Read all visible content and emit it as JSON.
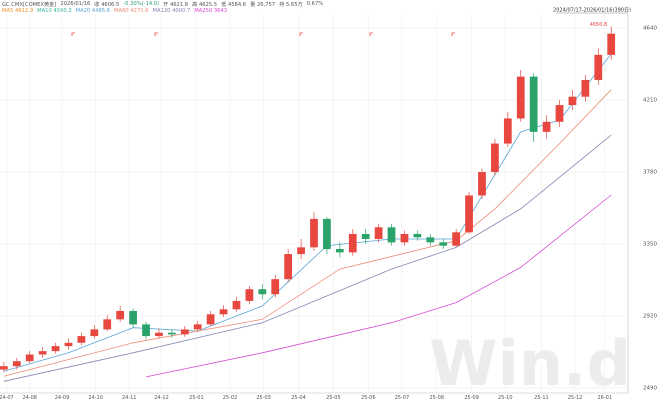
{
  "chart_data": {
    "type": "candlestick",
    "info": [
      "GC.CMX[COMEX黄金]",
      "2026/01/16",
      "收 4606.5",
      "-0.30%(-14.0)",
      "开 4621.8",
      "高 4625.5",
      "低 4584.6",
      "量 26,757",
      "持 5.65万",
      "0.67%"
    ],
    "range": "2024/07/17-2026/01/16(390日)",
    "watermark": "Win.d",
    "up_color": "#e8473f",
    "down_color": "#2aa36b",
    "candles": {
      "open": [
        2600,
        2620,
        2650,
        2690,
        2710,
        2740,
        2760,
        2800,
        2840,
        2900,
        2950,
        2870,
        2800,
        2820,
        2810,
        2840,
        2870,
        2930,
        2960,
        3010,
        3080,
        3050,
        3140,
        3290,
        3330,
        3500,
        3320,
        3300,
        3410,
        3380,
        3450,
        3360,
        3410,
        3390,
        3360,
        3340,
        3420,
        3640,
        3780,
        3950,
        4100,
        4350,
        4020,
        4080,
        4180,
        4230,
        4330,
        4480
      ],
      "high": [
        2645,
        2670,
        2710,
        2735,
        2760,
        2785,
        2820,
        2865,
        2925,
        2980,
        2965,
        2885,
        2845,
        2840,
        2860,
        2890,
        2950,
        2985,
        3035,
        3100,
        3110,
        3165,
        3320,
        3380,
        3540,
        3510,
        3360,
        3440,
        3440,
        3470,
        3470,
        3430,
        3430,
        3410,
        3380,
        3440,
        3660,
        3800,
        3980,
        4140,
        4390,
        4370,
        4120,
        4210,
        4270,
        4360,
        4520,
        4650.8
      ],
      "low": [
        2585,
        2600,
        2635,
        2670,
        2695,
        2720,
        2745,
        2785,
        2830,
        2885,
        2850,
        2780,
        2785,
        2790,
        2795,
        2825,
        2860,
        2915,
        2945,
        2990,
        3020,
        3030,
        3120,
        3260,
        3310,
        3290,
        3270,
        3280,
        3350,
        3360,
        3340,
        3340,
        3370,
        3340,
        3320,
        3330,
        3410,
        3620,
        3760,
        3930,
        4080,
        3960,
        3980,
        4050,
        4150,
        4200,
        4300,
        4450
      ],
      "close": [
        2620,
        2650,
        2690,
        2710,
        2740,
        2760,
        2800,
        2840,
        2900,
        2950,
        2870,
        2800,
        2820,
        2810,
        2840,
        2870,
        2930,
        2960,
        3010,
        3080,
        3050,
        3140,
        3290,
        3330,
        3500,
        3320,
        3300,
        3410,
        3380,
        3450,
        3360,
        3410,
        3390,
        3360,
        3340,
        3420,
        3640,
        3780,
        3950,
        4100,
        4350,
        4020,
        4080,
        4180,
        4230,
        4330,
        4480,
        4606.5
      ]
    },
    "ma": [
      {
        "name": "MA5",
        "last": 4612.9,
        "color": "#f08c2a"
      },
      {
        "name": "MA10",
        "last": 4590.3,
        "color": "#3bb39b"
      },
      {
        "name": "MA20",
        "last": 4485.6,
        "color": "#5aa7d6",
        "x": [
          0,
          5,
          10,
          15,
          20,
          25,
          30,
          35,
          40,
          43,
          47
        ],
        "values": [
          2590,
          2700,
          2850,
          2830,
          2980,
          3340,
          3380,
          3380,
          4020,
          4090,
          4485.6
        ]
      },
      {
        "name": "MA60",
        "last": 4271.6,
        "color": "#ec8a73",
        "x": [
          0,
          10,
          20,
          26,
          35,
          38,
          43,
          47
        ],
        "values": [
          2560,
          2760,
          2900,
          3200,
          3370,
          3560,
          3950,
          4271.6
        ]
      },
      {
        "name": "MA120",
        "last": 4000.7,
        "color": "#8486b3",
        "x": [
          0,
          10,
          20,
          30,
          35,
          40,
          47
        ],
        "values": [
          2530,
          2700,
          2880,
          3200,
          3330,
          3560,
          4000.7
        ]
      },
      {
        "name": "MA250",
        "last": 3643.0,
        "color": "#d64bd6",
        "x": [
          11,
          20,
          30,
          35,
          40,
          47
        ],
        "values": [
          2556,
          2700,
          2880,
          3000,
          3210,
          3643.0
        ]
      }
    ],
    "xlim": [
      -0.3,
      48.3
    ],
    "xticks": [
      {
        "value": 0.2,
        "label": "24-07"
      },
      {
        "value": 2,
        "label": "24-08"
      },
      {
        "value": 4.5,
        "label": "24-09"
      },
      {
        "value": 7.1,
        "label": "24-10"
      },
      {
        "value": 9.7,
        "label": "24-11"
      },
      {
        "value": 12.2,
        "label": "24-12"
      },
      {
        "value": 14.9,
        "label": "25-01"
      },
      {
        "value": 17.5,
        "label": "25-02"
      },
      {
        "value": 20.1,
        "label": "25-03"
      },
      {
        "value": 22.8,
        "label": "25-04"
      },
      {
        "value": 25.5,
        "label": "25-05"
      },
      {
        "value": 28.2,
        "label": "25-06"
      },
      {
        "value": 30.8,
        "label": "25-07"
      },
      {
        "value": 33.5,
        "label": "25-08"
      },
      {
        "value": 36.2,
        "label": "25-09"
      },
      {
        "value": 38.8,
        "label": "25-10"
      },
      {
        "value": 41.6,
        "label": "25-11"
      },
      {
        "value": 44.2,
        "label": "25-12"
      },
      {
        "value": 46.5,
        "label": "26-01"
      }
    ],
    "ylim": [
      2460,
      4724
    ],
    "yticks": [
      2490,
      2920,
      3350,
      3780,
      4210,
      4640
    ],
    "grid": true
  }
}
